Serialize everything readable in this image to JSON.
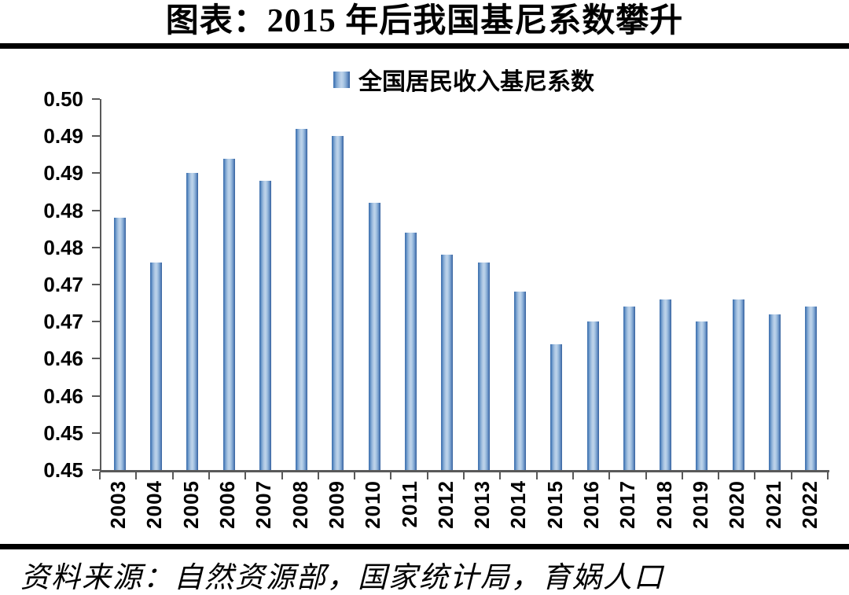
{
  "page": {
    "title": "图表：2015 年后我国基尼系数攀升",
    "source": "资料来源：自然资源部，国家统计局，育娲人口"
  },
  "chart_data": {
    "type": "bar",
    "title": "图表：2015 年后我国基尼系数攀升",
    "legend": [
      "全国居民收入基尼系数"
    ],
    "legend_position": "top",
    "categories": [
      "2003",
      "2004",
      "2005",
      "2006",
      "2007",
      "2008",
      "2009",
      "2010",
      "2011",
      "2012",
      "2013",
      "2014",
      "2015",
      "2016",
      "2017",
      "2018",
      "2019",
      "2020",
      "2021",
      "2022"
    ],
    "values": [
      0.479,
      0.473,
      0.485,
      0.487,
      0.484,
      0.491,
      0.49,
      0.481,
      0.477,
      0.474,
      0.473,
      0.469,
      0.462,
      0.465,
      0.467,
      0.468,
      0.465,
      0.468,
      0.466,
      0.467
    ],
    "xlabel": "",
    "ylabel": "",
    "ylim": [
      0.445,
      0.495
    ],
    "y_tick_step": 0.005,
    "y_tick_labels_top_to_bottom": [
      "0.50",
      "0.49",
      "0.49",
      "0.48",
      "0.48",
      "0.47",
      "0.47",
      "0.46",
      "0.46",
      "0.45",
      "0.45"
    ],
    "grid": false,
    "source_note": "资料来源：自然资源部，国家统计局，育娲人口",
    "colors": {
      "bar_edge_left": "#4a7cb8",
      "bar_center": "#bed3ea",
      "bar_edge_right": "#335f99",
      "axis": "#595959",
      "text": "#000000",
      "rule": "#000000"
    }
  }
}
